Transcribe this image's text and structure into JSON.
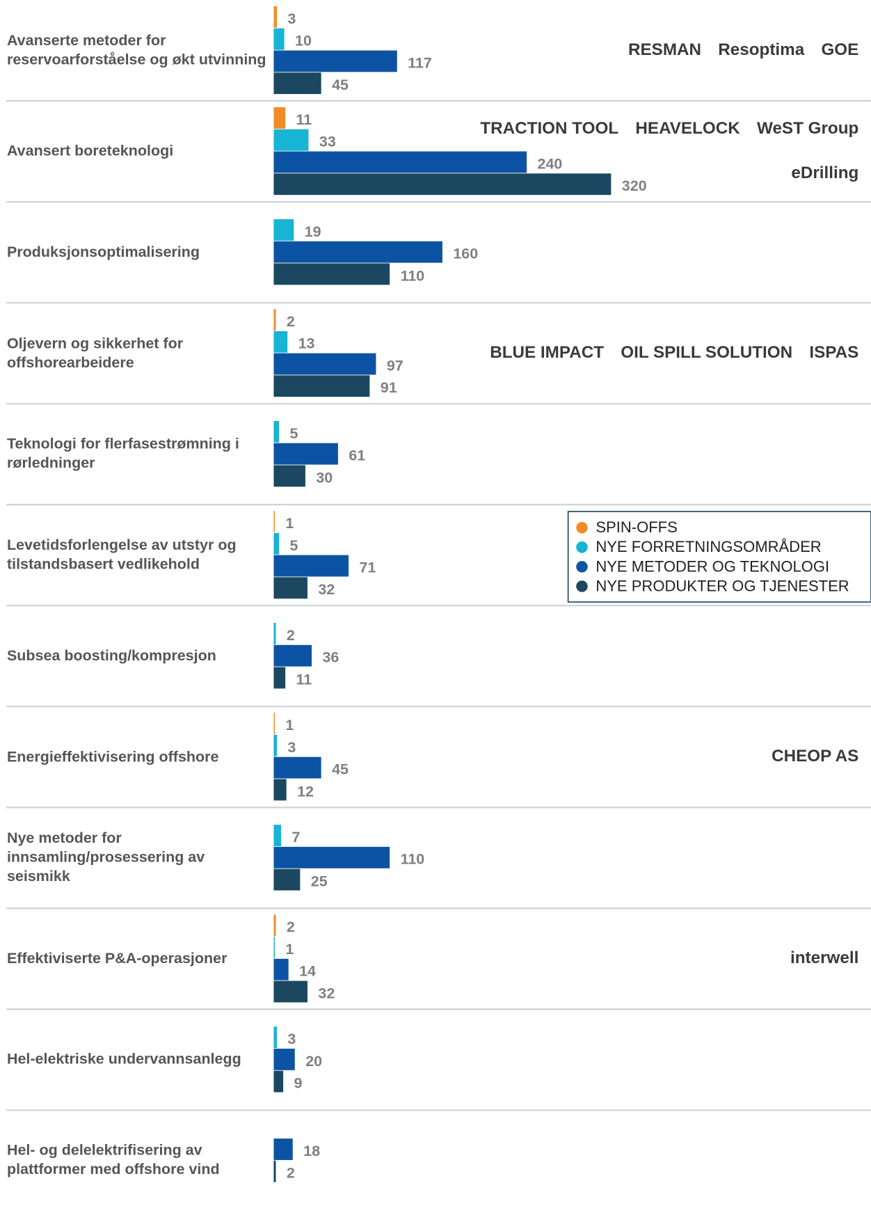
{
  "chart_data": {
    "type": "bar",
    "orientation": "horizontal",
    "categories": [
      "Avanserte metoder for reservoarforståelse og økt utvinning",
      "Avansert boreteknologi",
      "Produksjonsoptimalisering",
      "Oljevern og sikkerhet for offshorearbeidere",
      "Teknologi for flerfasestrømning i rørledninger",
      "Levetidsforlengelse av utstyr og tilstandsbasert vedlikehold",
      "Subsea boosting/kompresjon",
      "Energieffektivisering offshore",
      "Nye metoder for innsamling/prosessering av seismikk",
      "Effektiviserte P&A-operasjoner",
      "Hel-elektriske undervannsanlegg",
      "Hel- og delelektrifisering av plattformer med offshore vind"
    ],
    "series": [
      {
        "name": "SPIN-OFFS",
        "color": "#f28c28",
        "values": [
          3,
          11,
          null,
          2,
          null,
          1,
          null,
          1,
          null,
          2,
          null,
          null
        ]
      },
      {
        "name": "NYE FORRETNINGSOMRÅDER",
        "color": "#17b4d4",
        "values": [
          10,
          33,
          19,
          13,
          5,
          5,
          2,
          3,
          7,
          1,
          3,
          null
        ]
      },
      {
        "name": "NYE METODER OG TEKNOLOGI",
        "color": "#0d53a3",
        "values": [
          117,
          240,
          160,
          97,
          61,
          71,
          36,
          45,
          110,
          14,
          20,
          18
        ]
      },
      {
        "name": "NYE PRODUKTER OG TJENESTER",
        "color": "#1c4760",
        "values": [
          45,
          320,
          110,
          91,
          30,
          32,
          11,
          12,
          25,
          32,
          9,
          2
        ]
      }
    ],
    "xlim": [
      0,
      320
    ],
    "legend": "right",
    "logos": [
      [
        "RESMAN",
        "Resoptima",
        "GOE"
      ],
      [
        "TRACTION TOOL",
        "HEAVELOCK",
        "WeST Group",
        "eDrilling"
      ],
      [],
      [
        "BLUE IMPACT",
        "OIL SPILL SOLUTION",
        "ISPAS"
      ],
      [],
      [],
      [],
      [
        "CHEOP AS"
      ],
      [],
      [
        "interwell"
      ],
      [],
      []
    ]
  }
}
